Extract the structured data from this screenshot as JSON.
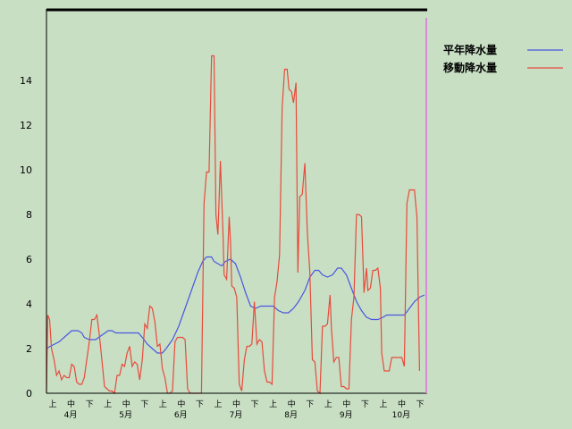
{
  "chart_data": {
    "type": "line",
    "title": "",
    "xlabel": "",
    "ylabel": "",
    "ylim": [
      0,
      16
    ],
    "y_ticks": [
      0,
      2,
      4,
      6,
      8,
      10,
      12,
      14
    ],
    "grid": false,
    "legend_position": "top-right",
    "x_period_labels": [
      "上",
      "中",
      "下",
      "上",
      "中",
      "下",
      "上",
      "中",
      "下",
      "上",
      "中",
      "下",
      "上",
      "中",
      "下",
      "上",
      "中",
      "下",
      "上",
      "中",
      "下"
    ],
    "month_labels": [
      "4月",
      "5月",
      "6月",
      "7月",
      "8月",
      "9月",
      "10月"
    ],
    "colors": {
      "background": "#c8dfc4",
      "axis": "#000000",
      "current_marker": "#d98ad9"
    },
    "series": [
      {
        "name": "平年降水量",
        "color": "#4a56e0",
        "points": [
          [
            0,
            2.0
          ],
          [
            0.3,
            2.1
          ],
          [
            1,
            2.3
          ],
          [
            1.6,
            2.6
          ],
          [
            2,
            2.8
          ],
          [
            2.5,
            2.8
          ],
          [
            2.8,
            2.7
          ],
          [
            3,
            2.5
          ],
          [
            3.4,
            2.4
          ],
          [
            3.9,
            2.4
          ],
          [
            4.4,
            2.6
          ],
          [
            4.9,
            2.8
          ],
          [
            5.2,
            2.8
          ],
          [
            5.5,
            2.7
          ],
          [
            6,
            2.7
          ],
          [
            6.5,
            2.7
          ],
          [
            7,
            2.7
          ],
          [
            7.3,
            2.7
          ],
          [
            7.6,
            2.5
          ],
          [
            8,
            2.2
          ],
          [
            8.4,
            2.0
          ],
          [
            8.8,
            1.8
          ],
          [
            9.2,
            1.8
          ],
          [
            9.5,
            2.0
          ],
          [
            10,
            2.4
          ],
          [
            10.5,
            3.0
          ],
          [
            11,
            3.8
          ],
          [
            11.5,
            4.6
          ],
          [
            12,
            5.4
          ],
          [
            12.4,
            5.9
          ],
          [
            12.7,
            6.1
          ],
          [
            13.1,
            6.1
          ],
          [
            13.3,
            5.9
          ],
          [
            13.6,
            5.8
          ],
          [
            13.9,
            5.7
          ],
          [
            14.2,
            5.9
          ],
          [
            14.6,
            6.0
          ],
          [
            15,
            5.8
          ],
          [
            15.4,
            5.2
          ],
          [
            15.8,
            4.5
          ],
          [
            16.2,
            3.9
          ],
          [
            16.6,
            3.8
          ],
          [
            17,
            3.9
          ],
          [
            17.5,
            3.9
          ],
          [
            18,
            3.9
          ],
          [
            18.4,
            3.7
          ],
          [
            18.8,
            3.6
          ],
          [
            19.2,
            3.6
          ],
          [
            19.6,
            3.8
          ],
          [
            20,
            4.1
          ],
          [
            20.5,
            4.6
          ],
          [
            20.9,
            5.2
          ],
          [
            21.3,
            5.5
          ],
          [
            21.6,
            5.5
          ],
          [
            21.9,
            5.3
          ],
          [
            22.3,
            5.2
          ],
          [
            22.7,
            5.3
          ],
          [
            23.1,
            5.6
          ],
          [
            23.4,
            5.6
          ],
          [
            23.8,
            5.3
          ],
          [
            24.2,
            4.7
          ],
          [
            24.6,
            4.1
          ],
          [
            25,
            3.7
          ],
          [
            25.4,
            3.4
          ],
          [
            25.8,
            3.3
          ],
          [
            26.3,
            3.3
          ],
          [
            26.7,
            3.4
          ],
          [
            27,
            3.5
          ],
          [
            27.5,
            3.5
          ],
          [
            28,
            3.5
          ],
          [
            28.4,
            3.5
          ],
          [
            28.8,
            3.8
          ],
          [
            29.2,
            4.1
          ],
          [
            29.6,
            4.3
          ],
          [
            30,
            4.4
          ]
        ]
      },
      {
        "name": "移動降水量",
        "color": "#e84a3c",
        "points": [
          [
            0,
            0
          ],
          [
            0.1,
            3.5
          ],
          [
            0.25,
            3.3
          ],
          [
            0.4,
            2.0
          ],
          [
            0.6,
            1.5
          ],
          [
            0.8,
            0.8
          ],
          [
            1,
            1.0
          ],
          [
            1.2,
            0.6
          ],
          [
            1.4,
            0.8
          ],
          [
            1.6,
            0.7
          ],
          [
            1.8,
            0.7
          ],
          [
            2,
            1.3
          ],
          [
            2.2,
            1.2
          ],
          [
            2.4,
            0.5
          ],
          [
            2.6,
            0.4
          ],
          [
            2.8,
            0.4
          ],
          [
            3,
            0.7
          ],
          [
            3.2,
            1.5
          ],
          [
            3.4,
            2.3
          ],
          [
            3.6,
            3.3
          ],
          [
            3.8,
            3.3
          ],
          [
            4,
            3.5
          ],
          [
            4.2,
            2.6
          ],
          [
            4.4,
            1.5
          ],
          [
            4.6,
            0.3
          ],
          [
            4.8,
            0.2
          ],
          [
            5,
            0.1
          ],
          [
            5.2,
            0.1
          ],
          [
            5.4,
            0.0
          ],
          [
            5.6,
            0.8
          ],
          [
            5.8,
            0.8
          ],
          [
            6,
            1.3
          ],
          [
            6.2,
            1.2
          ],
          [
            6.4,
            1.8
          ],
          [
            6.6,
            2.1
          ],
          [
            6.8,
            1.2
          ],
          [
            7,
            1.4
          ],
          [
            7.2,
            1.3
          ],
          [
            7.4,
            0.6
          ],
          [
            7.6,
            1.5
          ],
          [
            7.8,
            3.1
          ],
          [
            8,
            2.9
          ],
          [
            8.2,
            3.9
          ],
          [
            8.4,
            3.8
          ],
          [
            8.6,
            3.2
          ],
          [
            8.8,
            2.1
          ],
          [
            9,
            2.2
          ],
          [
            9.2,
            1.1
          ],
          [
            9.4,
            0.7
          ],
          [
            9.6,
            0.0
          ],
          [
            9.8,
            0.0
          ],
          [
            10,
            0.1
          ],
          [
            10.2,
            2.3
          ],
          [
            10.4,
            2.5
          ],
          [
            10.6,
            2.5
          ],
          [
            10.8,
            2.5
          ],
          [
            11,
            2.4
          ],
          [
            11.2,
            0.2
          ],
          [
            11.4,
            0.0
          ],
          [
            12.3,
            0.0
          ],
          [
            12.5,
            8.5
          ],
          [
            12.7,
            9.9
          ],
          [
            12.9,
            9.9
          ],
          [
            13.1,
            15.1
          ],
          [
            13.3,
            15.1
          ],
          [
            13.45,
            8.0
          ],
          [
            13.6,
            7.1
          ],
          [
            13.8,
            10.4
          ],
          [
            14,
            7.3
          ],
          [
            14.1,
            5.3
          ],
          [
            14.3,
            5.1
          ],
          [
            14.5,
            7.9
          ],
          [
            14.6,
            6.8
          ],
          [
            14.7,
            4.8
          ],
          [
            14.9,
            4.7
          ],
          [
            15.1,
            4.3
          ],
          [
            15.3,
            0.4
          ],
          [
            15.5,
            0.1
          ],
          [
            15.7,
            1.5
          ],
          [
            15.9,
            2.1
          ],
          [
            16.1,
            2.1
          ],
          [
            16.3,
            2.2
          ],
          [
            16.5,
            4.1
          ],
          [
            16.7,
            2.2
          ],
          [
            16.9,
            2.4
          ],
          [
            17.1,
            2.3
          ],
          [
            17.3,
            1.0
          ],
          [
            17.5,
            0.5
          ],
          [
            17.7,
            0.5
          ],
          [
            17.9,
            0.4
          ],
          [
            18.1,
            4.3
          ],
          [
            18.3,
            5.0
          ],
          [
            18.5,
            6.2
          ],
          [
            18.7,
            12.8
          ],
          [
            18.9,
            14.5
          ],
          [
            19.1,
            14.5
          ],
          [
            19.25,
            13.6
          ],
          [
            19.45,
            13.5
          ],
          [
            19.6,
            13.0
          ],
          [
            19.8,
            13.9
          ],
          [
            19.95,
            5.4
          ],
          [
            20.1,
            8.8
          ],
          [
            20.3,
            8.9
          ],
          [
            20.5,
            10.3
          ],
          [
            20.7,
            7.2
          ],
          [
            20.9,
            5.4
          ],
          [
            21.1,
            1.5
          ],
          [
            21.3,
            1.4
          ],
          [
            21.5,
            0.1
          ],
          [
            21.7,
            0.0
          ],
          [
            21.9,
            3.0
          ],
          [
            22.1,
            3.0
          ],
          [
            22.3,
            3.1
          ],
          [
            22.5,
            4.4
          ],
          [
            22.6,
            3.0
          ],
          [
            22.8,
            1.4
          ],
          [
            23,
            1.6
          ],
          [
            23.2,
            1.6
          ],
          [
            23.4,
            0.3
          ],
          [
            23.6,
            0.3
          ],
          [
            23.8,
            0.2
          ],
          [
            24,
            0.2
          ],
          [
            24.2,
            3.3
          ],
          [
            24.4,
            4.3
          ],
          [
            24.6,
            8.0
          ],
          [
            24.8,
            8.0
          ],
          [
            25,
            7.9
          ],
          [
            25.2,
            4.5
          ],
          [
            25.4,
            5.6
          ],
          [
            25.5,
            4.6
          ],
          [
            25.7,
            4.7
          ],
          [
            25.9,
            5.5
          ],
          [
            26.1,
            5.5
          ],
          [
            26.3,
            5.6
          ],
          [
            26.5,
            4.7
          ],
          [
            26.6,
            1.8
          ],
          [
            26.8,
            1.0
          ],
          [
            27,
            1.0
          ],
          [
            27.2,
            1.0
          ],
          [
            27.4,
            1.6
          ],
          [
            27.6,
            1.6
          ],
          [
            27.8,
            1.6
          ],
          [
            28,
            1.6
          ],
          [
            28.2,
            1.6
          ],
          [
            28.4,
            1.2
          ],
          [
            28.6,
            8.5
          ],
          [
            28.8,
            9.1
          ],
          [
            29,
            9.1
          ],
          [
            29.2,
            9.1
          ],
          [
            29.4,
            7.9
          ],
          [
            29.6,
            1.0
          ]
        ]
      }
    ]
  }
}
